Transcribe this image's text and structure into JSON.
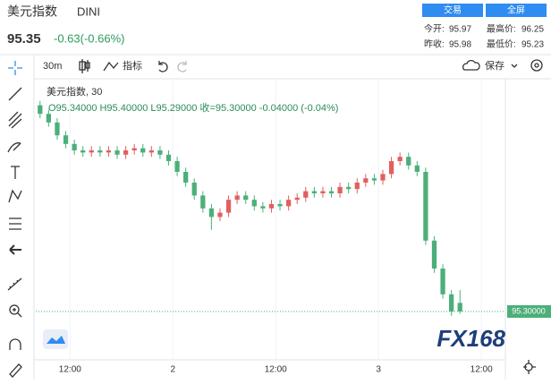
{
  "header": {
    "name": "美元指数",
    "symbol": "DINI",
    "price": "95.35",
    "change": "-0.63(-0.66%)",
    "buttons": [
      "交易",
      "全屏"
    ],
    "stats": [
      [
        "今开:",
        "95.97"
      ],
      [
        "最高价:",
        "96.25"
      ],
      [
        "昨收:",
        "95.98"
      ],
      [
        "最低价:",
        "95.23"
      ]
    ]
  },
  "toolbar": {
    "interval": "30m",
    "indicators": "指标",
    "save": "保存"
  },
  "watermark": "FX168",
  "chart_data": {
    "type": "candlestick",
    "legend_title": "美元指数, 30",
    "ohlc_text": "O95.34000 H95.40000 L95.29000 收=95.30000 -0.04000 (-0.04%)",
    "up_color": "#e0605f",
    "down_color": "#4caf7a",
    "x": [
      8.5,
      9.5,
      10.5,
      11.5,
      12.5,
      13.5,
      14.5,
      15.5,
      16.5,
      17.5,
      18.5,
      19.5,
      20.5,
      21.5,
      22.5,
      23.5,
      24.5,
      25.5,
      26.5,
      27.5,
      28.5,
      29.5,
      30.5,
      31.5,
      32.5,
      33.5,
      34.5,
      35.5,
      36.5,
      37.5,
      38.5,
      39.5,
      40.5,
      41.5,
      42.5,
      43.5,
      44.5,
      45.5,
      46.5,
      47.5,
      48.5,
      49.5,
      50.5,
      51.5,
      52.5,
      53.5,
      54.5,
      55.5,
      56.5,
      57.5
    ],
    "open": [
      96.26,
      96.22,
      96.18,
      96.12,
      96.08,
      96.05,
      96.04,
      96.05,
      96.04,
      96.05,
      96.03,
      96.05,
      96.06,
      96.04,
      96.05,
      96.03,
      96.0,
      95.95,
      95.9,
      95.84,
      95.78,
      95.74,
      95.76,
      95.82,
      95.84,
      95.82,
      95.79,
      95.78,
      95.8,
      95.79,
      95.82,
      95.83,
      95.86,
      95.85,
      95.86,
      95.85,
      95.88,
      95.87,
      95.9,
      95.92,
      95.91,
      95.94,
      96.0,
      96.02,
      95.98,
      95.95,
      95.63,
      95.5,
      95.38,
      95.34
    ],
    "high": [
      96.28,
      96.24,
      96.2,
      96.14,
      96.1,
      96.07,
      96.07,
      96.07,
      96.07,
      96.07,
      96.07,
      96.08,
      96.08,
      96.07,
      96.07,
      96.05,
      96.02,
      95.97,
      95.92,
      95.86,
      95.8,
      95.78,
      95.84,
      95.86,
      95.86,
      95.84,
      95.81,
      95.82,
      95.82,
      95.84,
      95.85,
      95.88,
      95.88,
      95.88,
      95.88,
      95.9,
      95.9,
      95.92,
      95.94,
      95.94,
      95.96,
      96.02,
      96.04,
      96.04,
      96.0,
      95.97,
      95.65,
      95.52,
      95.4,
      95.4
    ],
    "low": [
      96.2,
      96.16,
      96.1,
      96.06,
      96.03,
      96.02,
      96.02,
      96.02,
      96.02,
      96.01,
      96.01,
      96.03,
      96.02,
      96.02,
      96.01,
      95.98,
      95.93,
      95.88,
      95.82,
      95.76,
      95.68,
      95.72,
      95.74,
      95.8,
      95.8,
      95.77,
      95.76,
      95.76,
      95.77,
      95.77,
      95.8,
      95.81,
      95.83,
      95.83,
      95.83,
      95.83,
      95.85,
      95.85,
      95.88,
      95.89,
      95.89,
      95.92,
      95.98,
      95.96,
      95.93,
      95.61,
      95.48,
      95.36,
      95.28,
      95.29
    ],
    "close": [
      96.22,
      96.18,
      96.12,
      96.08,
      96.05,
      96.04,
      96.05,
      96.04,
      96.05,
      96.03,
      96.05,
      96.06,
      96.04,
      96.05,
      96.03,
      96.0,
      95.95,
      95.9,
      95.84,
      95.78,
      95.74,
      95.76,
      95.82,
      95.84,
      95.82,
      95.79,
      95.78,
      95.8,
      95.79,
      95.82,
      95.83,
      95.86,
      95.85,
      95.86,
      95.85,
      95.88,
      95.87,
      95.9,
      95.92,
      95.91,
      95.94,
      96.0,
      96.02,
      95.98,
      95.95,
      95.63,
      95.5,
      95.38,
      95.3,
      95.3
    ],
    "xlim": [
      8,
      62.8
    ],
    "xticks": [
      {
        "value": 12,
        "label": "12:00"
      },
      {
        "value": 24,
        "label": "2"
      },
      {
        "value": 36,
        "label": "12:00"
      },
      {
        "value": 48,
        "label": "3"
      },
      {
        "value": 60,
        "label": "12:00"
      }
    ],
    "ylim": [
      95.1,
      96.35
    ],
    "price_line": {
      "value": 95.3,
      "label": "95.30000"
    }
  }
}
